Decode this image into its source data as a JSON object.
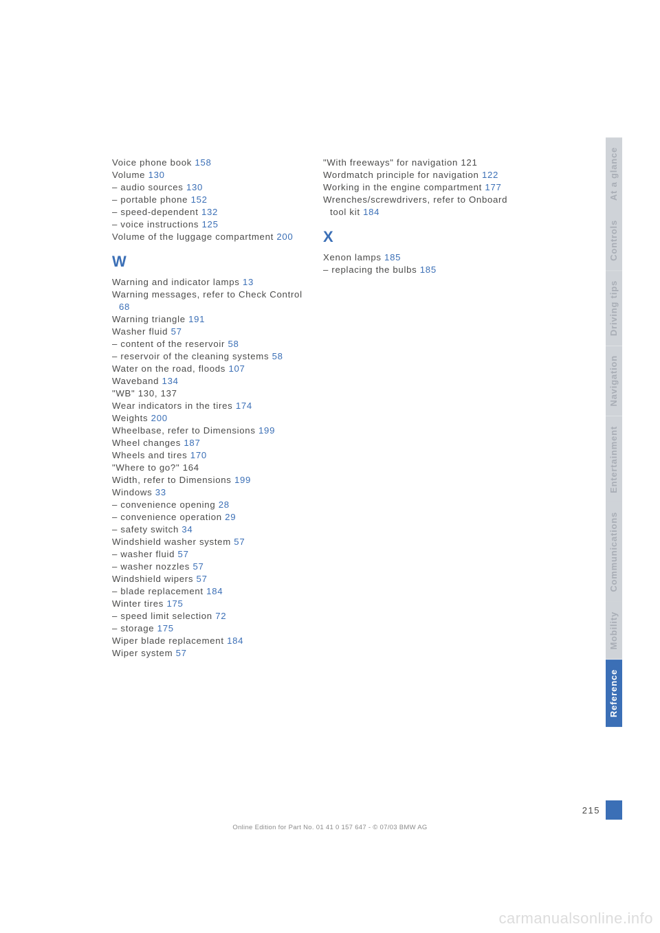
{
  "colors": {
    "link": "#3b6fb6",
    "text": "#4a4a49",
    "tab_inactive_bg": "#cfd3d8",
    "tab_inactive_fg": "#a9aeb6",
    "tab_active_bg": "#3b6fb6",
    "tab_active_fg": "#ffffff",
    "watermark": "#dcdcdc"
  },
  "col1": [
    {
      "t": "Voice phone book ",
      "r": "158"
    },
    {
      "t": "Volume ",
      "r": "130"
    },
    {
      "t": "– audio sources ",
      "r": "130"
    },
    {
      "t": "– portable phone ",
      "r": "152"
    },
    {
      "t": "– speed-dependent ",
      "r": "132"
    },
    {
      "t": "– voice instructions ",
      "r": "125"
    },
    {
      "t": "Volume of the luggage compartment ",
      "r": "200"
    },
    {
      "letter": "W"
    },
    {
      "t": "Warning and indicator lamps ",
      "r": "13"
    },
    {
      "t": "Warning messages, refer to Check Control ",
      "r": "68"
    },
    {
      "t": "Warning triangle ",
      "r": "191"
    },
    {
      "t": "Washer fluid ",
      "r": "57"
    },
    {
      "t": "– content of the reservoir ",
      "r": "58"
    },
    {
      "t": "– reservoir of the cleaning systems ",
      "r": "58"
    },
    {
      "t": "Water on the road, floods ",
      "r": "107"
    },
    {
      "t": "Waveband ",
      "r": "134"
    },
    {
      "t": "\"WB\" 130, 137",
      "r": ""
    },
    {
      "t": "Wear indicators in the tires ",
      "r": "174"
    },
    {
      "t": "Weights ",
      "r": "200"
    },
    {
      "t": "Wheelbase, refer to Dimensions ",
      "r": "199"
    },
    {
      "t": "Wheel changes ",
      "r": "187"
    },
    {
      "t": "Wheels and tires ",
      "r": "170"
    },
    {
      "t": "\"Where to go?\" 164",
      "r": ""
    },
    {
      "t": "Width, refer to Dimensions ",
      "r": "199"
    },
    {
      "t": "Windows ",
      "r": "33"
    },
    {
      "t": "– convenience opening ",
      "r": "28"
    },
    {
      "t": "– convenience operation ",
      "r": "29"
    },
    {
      "t": "– safety switch ",
      "r": "34"
    },
    {
      "t": "Windshield washer system ",
      "r": "57"
    },
    {
      "t": "– washer fluid ",
      "r": "57"
    },
    {
      "t": "– washer nozzles ",
      "r": "57"
    },
    {
      "t": "Windshield wipers ",
      "r": "57"
    },
    {
      "t": "– blade replacement ",
      "r": "184"
    },
    {
      "t": "Winter tires ",
      "r": "175"
    },
    {
      "t": "– speed limit selection ",
      "r": "72"
    },
    {
      "t": "– storage ",
      "r": "175"
    },
    {
      "t": "Wiper blade replacement ",
      "r": "184"
    },
    {
      "t": "Wiper system ",
      "r": "57"
    }
  ],
  "col2": [
    {
      "t": "\"With freeways\" for navigation 121",
      "r": ""
    },
    {
      "t": "Wordmatch principle for navigation ",
      "r": "122"
    },
    {
      "t": "Working in the engine compartment ",
      "r": "177"
    },
    {
      "t": "Wrenches/screwdrivers, refer to Onboard tool kit ",
      "r": "184"
    },
    {
      "letter": "X"
    },
    {
      "t": "Xenon lamps ",
      "r": "185"
    },
    {
      "t": "– replacing the bulbs ",
      "r": "185"
    }
  ],
  "tabs": [
    {
      "label": "At a glance",
      "active": false
    },
    {
      "label": "Controls",
      "active": false
    },
    {
      "label": "Driving tips",
      "active": false
    },
    {
      "label": "Navigation",
      "active": false
    },
    {
      "label": "Entertainment",
      "active": false
    },
    {
      "label": "Communications",
      "active": false
    },
    {
      "label": "Mobility",
      "active": false
    },
    {
      "label": "Reference",
      "active": true
    }
  ],
  "page_number": "215",
  "footer": "Online Edition for Part No. 01 41 0 157 647 - © 07/03 BMW AG",
  "watermark": "carmanualsonline.info"
}
